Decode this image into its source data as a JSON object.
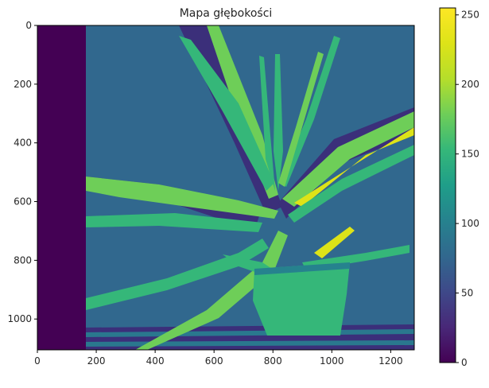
{
  "chart_data": {
    "type": "heatmap",
    "title": "Mapa głębokości",
    "xlabel": "",
    "ylabel": "",
    "x_range": [
      0,
      1280
    ],
    "y_range": [
      0,
      1105
    ],
    "y_inverted": true,
    "x_ticks": [
      "0",
      "200",
      "400",
      "600",
      "800",
      "1000",
      "1200"
    ],
    "y_ticks": [
      "0",
      "200",
      "400",
      "600",
      "800",
      "1000"
    ],
    "colormap": "viridis",
    "colorbar": {
      "range": [
        0,
        255
      ],
      "ticks": [
        "0",
        "50",
        "100",
        "150",
        "200",
        "250"
      ]
    },
    "regions": [
      {
        "name": "left-border",
        "value": 5
      },
      {
        "name": "background",
        "value": 105
      },
      {
        "name": "leaves",
        "value": 170
      },
      {
        "name": "leaf-highlights",
        "value": 230
      },
      {
        "name": "pot",
        "value": 175
      },
      {
        "name": "dark-edges",
        "value": 25
      }
    ]
  }
}
